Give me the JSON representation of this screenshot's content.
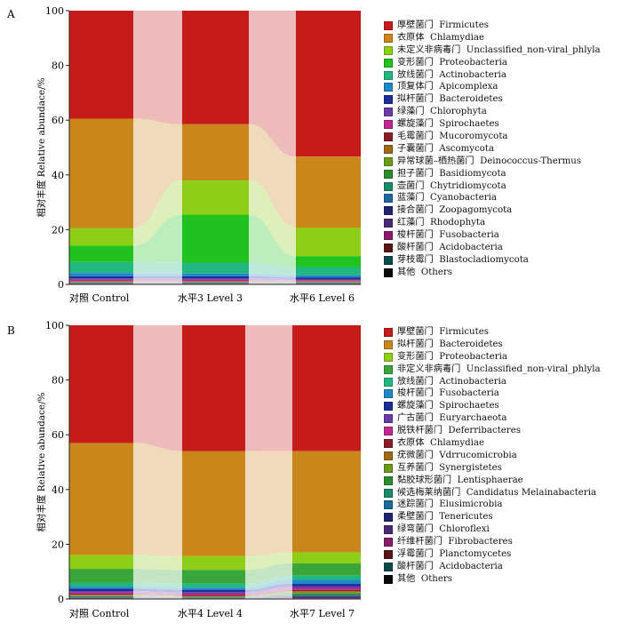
{
  "chart_data": [
    {
      "panel_label": "A",
      "type": "area",
      "ylabel": "相对丰度 Relative abundace/%",
      "ylim": [
        0,
        100
      ],
      "yticks": [
        0,
        20,
        40,
        60,
        80,
        100
      ],
      "categories": [
        "对照  Control",
        "水平3  Level 3",
        "水平6  Level 6"
      ],
      "legend_position": "right",
      "series": [
        {
          "name": "厚壁菌门  Firmicutes",
          "color": "#c51b1b",
          "values": [
            39.5,
            41.5,
            53.5
          ]
        },
        {
          "name": "衣原体  Chlamydiae",
          "color": "#c9861a",
          "values": [
            40.0,
            20.5,
            26.0
          ]
        },
        {
          "name": "未定义非病毒门  Unclassified_non-viral_phlyla",
          "color": "#8fce18",
          "values": [
            6.5,
            12.5,
            10.5
          ]
        },
        {
          "name": "变形菌门  Proteobacteria",
          "color": "#1fc21f",
          "values": [
            6.0,
            17.5,
            4.0
          ]
        },
        {
          "name": "放线菌门  Actinobacteria",
          "color": "#20b87e",
          "values": [
            4.0,
            4.0,
            3.0
          ]
        },
        {
          "name": "顶复体门  Apicomplexa",
          "color": "#1e88c8",
          "values": [
            1.2,
            1.0,
            0.8
          ]
        },
        {
          "name": "拟杆菌门  Bacteroidetes",
          "color": "#1a2d9a",
          "values": [
            0.8,
            0.8,
            0.6
          ]
        },
        {
          "name": "绿藻门  Chlorophyta",
          "color": "#6a3aa8",
          "values": [
            0.5,
            0.5,
            0.4
          ]
        },
        {
          "name": "螺旋藻门  Spirochaetes",
          "color": "#c0288f",
          "values": [
            0.4,
            0.4,
            0.3
          ]
        },
        {
          "name": "毛霉菌门  Mucoromycota",
          "color": "#8a1c2a",
          "values": [
            0.2,
            0.2,
            0.2
          ]
        },
        {
          "name": "子囊菌门  Ascomycota",
          "color": "#a06a14",
          "values": [
            0.2,
            0.2,
            0.2
          ]
        },
        {
          "name": "异常球菌–栖热菌门  Deinococcus-Thermus",
          "color": "#6e9a1a",
          "values": [
            0.1,
            0.1,
            0.1
          ]
        },
        {
          "name": "担子菌门  Basidiomycota",
          "color": "#2a8c2a",
          "values": [
            0.1,
            0.1,
            0.1
          ]
        },
        {
          "name": "壶菌门  Chytridiomycota",
          "color": "#1a8a6a",
          "values": [
            0.1,
            0.1,
            0.1
          ]
        },
        {
          "name": "蓝藻门  Cyanobacteria",
          "color": "#1a6aa0",
          "values": [
            0.1,
            0.1,
            0.1
          ]
        },
        {
          "name": "接合菌门  Zoopagomycota",
          "color": "#1c2470",
          "values": [
            0.1,
            0.1,
            0.1
          ]
        },
        {
          "name": "红藻门  Rhodophyta",
          "color": "#4a2a78",
          "values": [
            0.1,
            0.1,
            0.1
          ]
        },
        {
          "name": "梭杆菌门  Fusobacteria",
          "color": "#8a1a6a",
          "values": [
            0.05,
            0.05,
            0.05
          ]
        },
        {
          "name": "酸杆菌门  Acidobacteria",
          "color": "#5a1414",
          "values": [
            0.05,
            0.05,
            0.05
          ]
        },
        {
          "name": "芽枝霉门  Blastocladiomycota",
          "color": "#0a4a4a",
          "values": [
            0.05,
            0.05,
            0.05
          ]
        },
        {
          "name": "其他  Others",
          "color": "#0a0a0a",
          "values": [
            0.1,
            0.1,
            0.1
          ]
        }
      ]
    },
    {
      "panel_label": "B",
      "type": "area",
      "ylabel": "相对丰度 Relative abundace/%",
      "ylim": [
        0,
        100
      ],
      "yticks": [
        0,
        20,
        40,
        60,
        80,
        100
      ],
      "categories": [
        "对照  Control",
        "水平4  Level 4",
        "水平7  Level 7"
      ],
      "legend_position": "right",
      "series": [
        {
          "name": "厚壁菌门  Firmicutes",
          "color": "#c51b1b",
          "values": [
            43.0,
            46.0,
            46.0
          ]
        },
        {
          "name": "拟杆菌门  Bacteroidetes",
          "color": "#c9861a",
          "values": [
            41.0,
            38.5,
            37.0
          ]
        },
        {
          "name": "变形菌门  Proteobacteria",
          "color": "#8fce18",
          "values": [
            5.0,
            5.0,
            4.0
          ]
        },
        {
          "name": "非定义非病毒门  Unclassified_non-viral_phlyla",
          "color": "#3aa53a",
          "values": [
            5.0,
            5.0,
            4.5
          ]
        },
        {
          "name": "放线菌门  Actinobacteria",
          "color": "#20b87e",
          "values": [
            1.5,
            1.5,
            1.5
          ]
        },
        {
          "name": "梭杆菌门  Fusobacteria",
          "color": "#1e88c8",
          "values": [
            0.8,
            0.8,
            1.5
          ]
        },
        {
          "name": "螺旋藻门  Spirochaetes",
          "color": "#1a2d9a",
          "values": [
            0.8,
            0.8,
            0.8
          ]
        },
        {
          "name": "广古菌门  Euryarchaeota",
          "color": "#6a3aa8",
          "values": [
            0.6,
            0.6,
            0.8
          ]
        },
        {
          "name": "脱铁杆菌门  Deferribacteres",
          "color": "#c0288f",
          "values": [
            0.5,
            0.5,
            0.6
          ]
        },
        {
          "name": "衣原体  Chlamydiae",
          "color": "#8a1c2a",
          "values": [
            0.3,
            0.3,
            0.4
          ]
        },
        {
          "name": "疣微菌门  Vdrrucomicrobia",
          "color": "#a06a14",
          "values": [
            0.3,
            0.2,
            0.5
          ]
        },
        {
          "name": "互养菌门  Synergistetes",
          "color": "#6e9a1a",
          "values": [
            0.2,
            0.2,
            0.4
          ]
        },
        {
          "name": "黏胶球形菌门  Lentisphaerae",
          "color": "#2a8c2a",
          "values": [
            0.2,
            0.1,
            0.4
          ]
        },
        {
          "name": "候选梅莱纳菌门  Candidatus Melainabacteria",
          "color": "#1a8a6a",
          "values": [
            0.2,
            0.1,
            0.3
          ]
        },
        {
          "name": "迷踪菌门  Elusimicrobia",
          "color": "#1a6aa0",
          "values": [
            0.1,
            0.1,
            0.3
          ]
        },
        {
          "name": "柔壁菌门  Tenericutes",
          "color": "#1c2470",
          "values": [
            0.1,
            0.1,
            0.3
          ]
        },
        {
          "name": "绿弯菌门  Chloroflexi",
          "color": "#4a2a78",
          "values": [
            0.1,
            0.1,
            0.2
          ]
        },
        {
          "name": "纤维杆菌门  Fibrobacteres",
          "color": "#8a1a6a",
          "values": [
            0.1,
            0.05,
            0.2
          ]
        },
        {
          "name": "浮霉菌门  Planctomycetes",
          "color": "#5a1414",
          "values": [
            0.05,
            0.05,
            0.1
          ]
        },
        {
          "name": "酸杆菌门  Acidobacteria",
          "color": "#0a4a4a",
          "values": [
            0.05,
            0.05,
            0.1
          ]
        },
        {
          "name": "其他  Others",
          "color": "#0a0a0a",
          "values": [
            0.1,
            0.1,
            0.1
          ]
        }
      ]
    }
  ]
}
